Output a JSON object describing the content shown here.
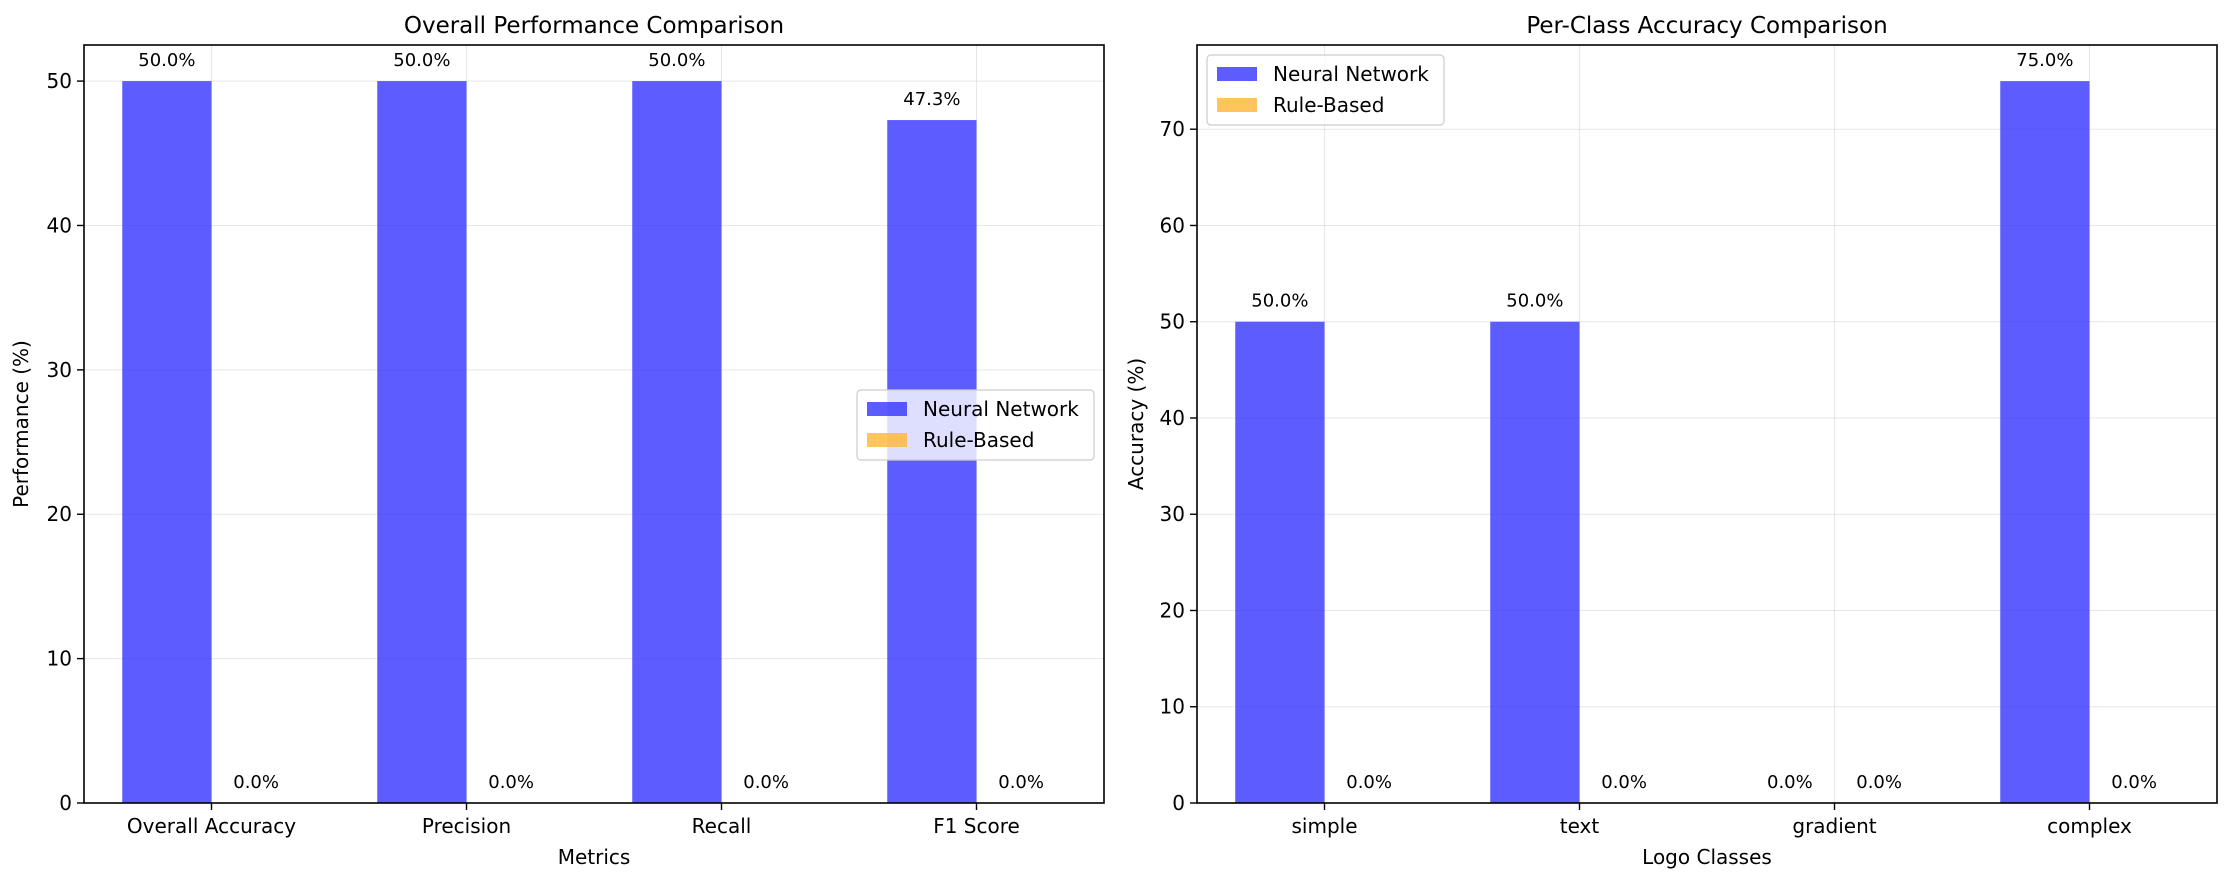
{
  "chart_data": [
    {
      "type": "bar",
      "title": "Overall Performance Comparison",
      "xlabel": "Metrics",
      "ylabel": "Performance (%)",
      "categories": [
        "Overall Accuracy",
        "Precision",
        "Recall",
        "F1 Score"
      ],
      "series": [
        {
          "name": "Neural Network",
          "color": "#3333ff",
          "values": [
            50.0,
            50.0,
            50.0,
            47.3
          ],
          "labels": [
            "50.0%",
            "50.0%",
            "50.0%",
            "47.3%"
          ]
        },
        {
          "name": "Rule-Based",
          "color": "#ffb733",
          "values": [
            0.0,
            0.0,
            0.0,
            0.0
          ],
          "labels": [
            "0.0%",
            "0.0%",
            "0.0%",
            "0.0%"
          ]
        }
      ],
      "ylim": [
        0,
        52.5
      ],
      "yticks": [
        0,
        10,
        20,
        30,
        40,
        50
      ],
      "grid": true,
      "legend_position": "center-right"
    },
    {
      "type": "bar",
      "title": "Per-Class Accuracy Comparison",
      "xlabel": "Logo Classes",
      "ylabel": "Accuracy (%)",
      "categories": [
        "simple",
        "text",
        "gradient",
        "complex"
      ],
      "series": [
        {
          "name": "Neural Network",
          "color": "#3333ff",
          "values": [
            50.0,
            50.0,
            0.0,
            75.0
          ],
          "labels": [
            "50.0%",
            "50.0%",
            "0.0%",
            "75.0%"
          ]
        },
        {
          "name": "Rule-Based",
          "color": "#ffb733",
          "values": [
            0.0,
            0.0,
            0.0,
            0.0
          ],
          "labels": [
            "0.0%",
            "0.0%",
            "0.0%",
            "0.0%"
          ]
        }
      ],
      "ylim": [
        0,
        78.75
      ],
      "yticks": [
        0,
        10,
        20,
        30,
        40,
        50,
        60,
        70
      ],
      "grid": true,
      "legend_position": "upper-left"
    }
  ]
}
